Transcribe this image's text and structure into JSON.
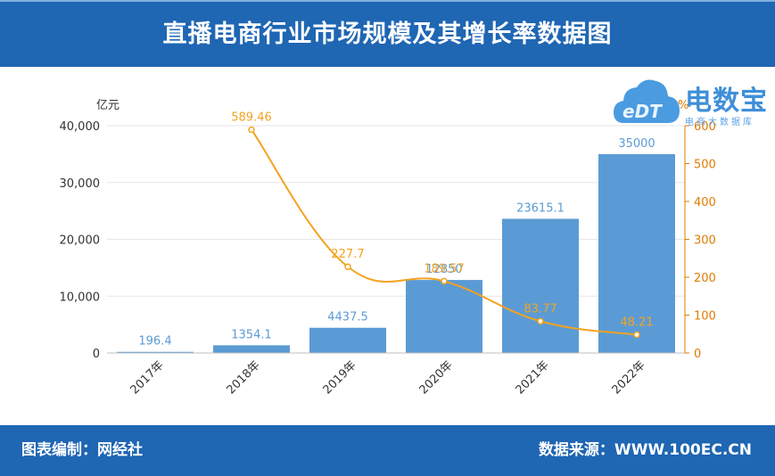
{
  "header": {
    "title": "直播电商行业市场规模及其增长率数据图"
  },
  "footer": {
    "left": "图表编制：网经社",
    "right": "数据来源：WWW.100EC.CN"
  },
  "logo": {
    "name": "电数宝",
    "sub": "电商大数据库",
    "mark": "eDT"
  },
  "colors": {
    "bar": "#5b9bd5",
    "line": "#f4a21f",
    "band": "#1f66b3",
    "axis_left": "#333333",
    "axis_right": "#e07b00"
  },
  "chart_data": {
    "type": "bar",
    "categories": [
      "2017年",
      "2018年",
      "2019年",
      "2020年",
      "2021年",
      "2022年"
    ],
    "series": [
      {
        "values": [
          196.4,
          1354.1,
          4437.5,
          12850,
          23615.1,
          35000
        ],
        "labels": [
          "196.4",
          "1354.1",
          "4437.5",
          "12850",
          "23615.1",
          "35000"
        ],
        "axis": "left",
        "kind": "bar"
      },
      {
        "values": [
          null,
          589.46,
          227.7,
          189.57,
          83.77,
          48.21
        ],
        "labels": [
          "",
          "589.46",
          "227.7",
          "189.57",
          "83.77",
          "48.21"
        ],
        "axis": "right",
        "kind": "line"
      }
    ],
    "y_left": {
      "unit": "亿元",
      "ylim": [
        0,
        40000
      ],
      "ticks": [
        "0",
        "10,000",
        "20,000",
        "30,000",
        "40,000"
      ],
      "tick_values": [
        0,
        10000,
        20000,
        30000,
        40000
      ]
    },
    "y_right": {
      "unit": "%",
      "ylim": [
        0,
        600
      ],
      "ticks": [
        "0",
        "100",
        "200",
        "300",
        "400",
        "500",
        "600"
      ],
      "tick_values": [
        0,
        100,
        200,
        300,
        400,
        500,
        600
      ]
    },
    "grid": true,
    "legend": "none"
  }
}
